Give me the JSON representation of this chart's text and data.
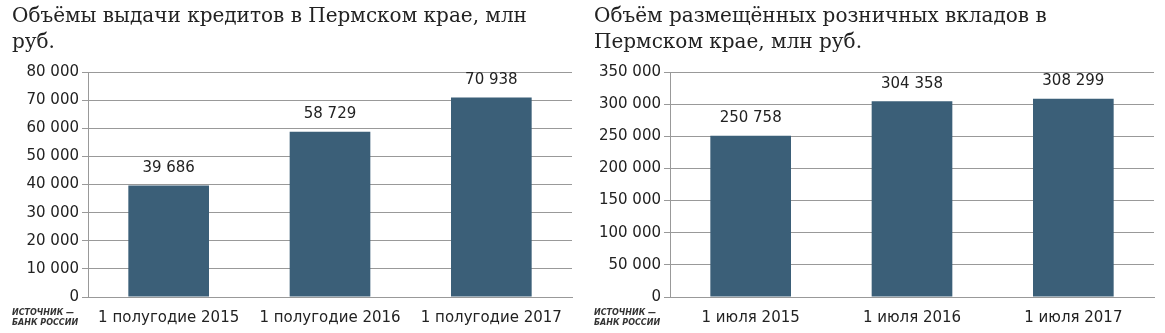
{
  "chart_data": [
    {
      "type": "bar",
      "title": "Объёмы выдачи кредитов в Пермском крае, млн руб.",
      "categories": [
        "1 полугодие 2015",
        "1 полугодие 2016",
        "1 полугодие 2017"
      ],
      "values": [
        39686,
        58729,
        70938
      ],
      "value_labels": [
        "39 686",
        "58 729",
        "70 938"
      ],
      "color": "#3b5f78",
      "ylim": [
        0,
        80000
      ],
      "yticks": [
        {
          "value": 0,
          "label": "0"
        },
        {
          "value": 10000,
          "label": "10 000"
        },
        {
          "value": 20000,
          "label": "20 000"
        },
        {
          "value": 30000,
          "label": "30 000"
        },
        {
          "value": 40000,
          "label": "40 000"
        },
        {
          "value": 50000,
          "label": "50 000"
        },
        {
          "value": 60000,
          "label": "60 000"
        },
        {
          "value": 70000,
          "label": "70 000"
        },
        {
          "value": 80000,
          "label": "80 000"
        }
      ],
      "grid": "y",
      "annotations": [
        "ИСТОЧНИК — БАНК РОССИИ"
      ]
    },
    {
      "type": "bar",
      "title": "Объём размещённых розничных вкладов в Пермском крае, млн руб.",
      "categories": [
        "1 июля 2015",
        "1 июля 2016",
        "1 июля 2017"
      ],
      "values": [
        250758,
        304358,
        308299
      ],
      "value_labels": [
        "250 758",
        "304 358",
        "308 299"
      ],
      "color": "#3b5f78",
      "ylim": [
        0,
        350000
      ],
      "yticks": [
        {
          "value": 0,
          "label": "0"
        },
        {
          "value": 50000,
          "label": "50 000"
        },
        {
          "value": 100000,
          "label": "100 000"
        },
        {
          "value": 150000,
          "label": "150 000"
        },
        {
          "value": 200000,
          "label": "200 000"
        },
        {
          "value": 250000,
          "label": "250 000"
        },
        {
          "value": 300000,
          "label": "300 000"
        },
        {
          "value": 350000,
          "label": "350 000"
        }
      ],
      "grid": "y",
      "annotations": [
        "ИСТОЧНИК — БАНК РОССИИ"
      ]
    }
  ]
}
